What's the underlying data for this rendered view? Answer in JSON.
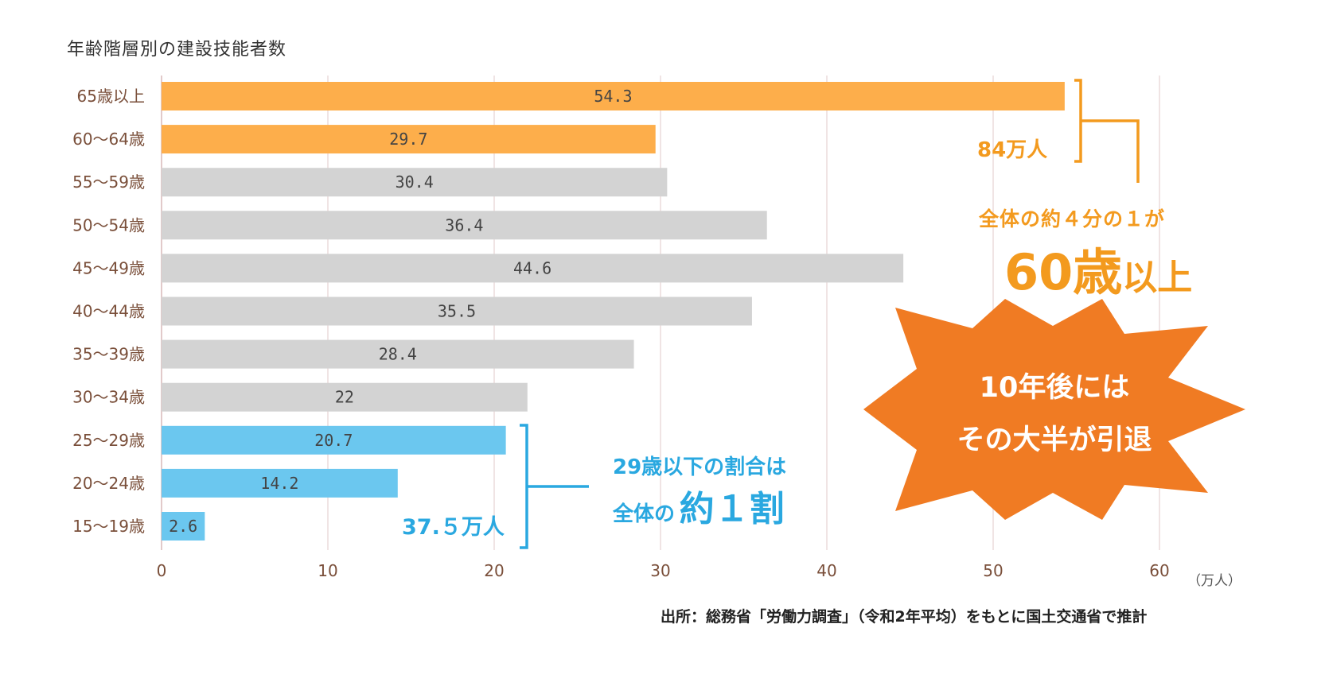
{
  "chart_data": {
    "type": "bar",
    "orientation": "horizontal",
    "title": "年齢階層別の建設技能者数",
    "categories": [
      "65歳以上",
      "60～64歳",
      "55～59歳",
      "50～54歳",
      "45～49歳",
      "40～44歳",
      "35～39歳",
      "30～34歳",
      "25～29歳",
      "20～24歳",
      "15～19歳"
    ],
    "values": [
      54.3,
      29.7,
      30.4,
      36.4,
      44.6,
      35.5,
      28.4,
      22,
      20.7,
      14.2,
      2.6
    ],
    "value_labels": [
      "54.3",
      "29.7",
      "30.4",
      "36.4",
      "44.6",
      "35.5",
      "28.4",
      "22",
      "20.7",
      "14.2",
      "2.6"
    ],
    "bar_colors": [
      "#fdae4b",
      "#fdae4b",
      "#d3d3d3",
      "#d3d3d3",
      "#d3d3d3",
      "#d3d3d3",
      "#d3d3d3",
      "#d3d3d3",
      "#6bc7ef",
      "#6bc7ef",
      "#6bc7ef"
    ],
    "x_ticks": [
      0,
      10,
      20,
      30,
      40,
      50,
      60
    ],
    "xlim": [
      0,
      62
    ],
    "x_unit_label": "（万人）",
    "grid": "vertical",
    "source": "出所：総務省「労働力調査」（令和2年平均）をもとに国土交通省で推計"
  },
  "annotations": {
    "orange_total": "84万人",
    "quarter_line1": "全体の約４分の１が",
    "quarter_big": "60歳",
    "quarter_small": "以上",
    "starburst_line1": "10年後には",
    "starburst_line2": "その大半が引退",
    "blue_total": "37.５万人",
    "blue_note_line1": "29歳以下の割合は",
    "blue_note_small": "全体の",
    "blue_note_big": "約１割"
  },
  "colors": {
    "orange": "#f39a1e",
    "orange_bar": "#fdae4b",
    "gray_bar": "#d3d3d3",
    "blue": "#2aa8e0",
    "blue_bar": "#6bc7ef",
    "starburst": "#f07b23",
    "category_text": "#7a4f3a",
    "grid": "#ecdcdc"
  }
}
